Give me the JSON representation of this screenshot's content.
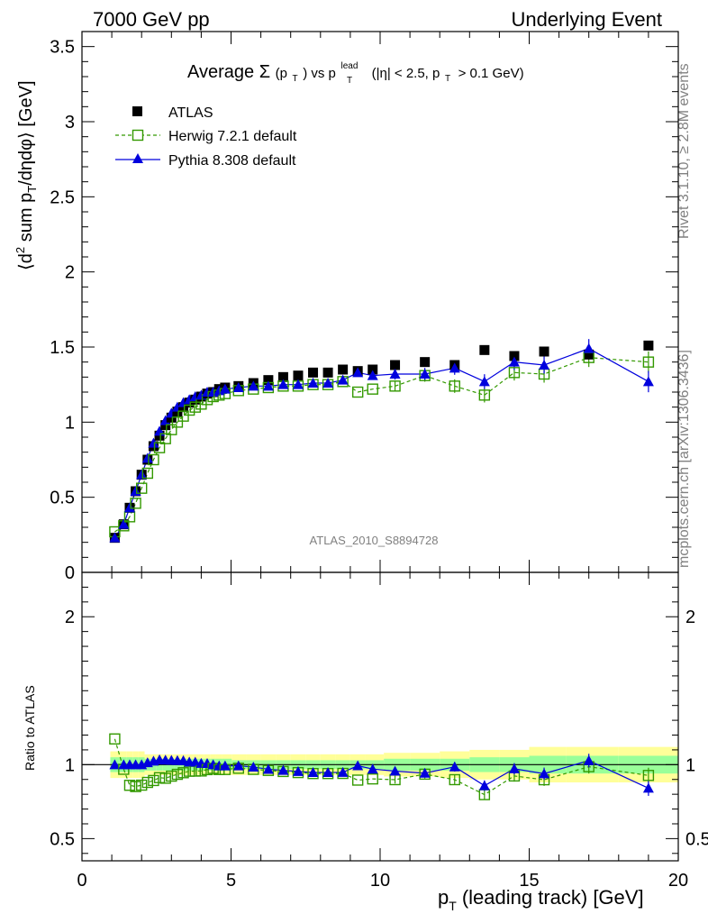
{
  "header": {
    "left": "7000 GeV pp",
    "right": "Underlying Event"
  },
  "side_notes": {
    "rivet": "Rivet 3.1.10, ≥ 2.8M events",
    "mcplots": "mcplots.cern.ch [arXiv:1306.3436]"
  },
  "title_parts": {
    "average": "Average",
    "sigma": "Σ",
    "p": "(p",
    "t1": "T",
    "close_vs": ") vs p",
    "lead": "lead",
    "t2": "T",
    "cuts_a": "(|η| < 2.5, p",
    "t3": "T",
    "cuts_b": "> 0.1 GeV)"
  },
  "analysis_label": "ATLAS_2010_S8894728",
  "ylabel_main": {
    "a": "⟨d",
    "sup2": "2",
    "b": " sum p",
    "subT": "T",
    "c": "/dηdφ⟩ [GeV]"
  },
  "ylabel_ratio": "Ratio to ATLAS",
  "xlabel": {
    "p": "p",
    "subT": "T",
    "rest": "(leading track) [GeV]"
  },
  "legend": [
    {
      "label": "ATLAS",
      "color": "#000000",
      "marker": "filled-square"
    },
    {
      "label": "Herwig 7.2.1 default",
      "color": "#339900",
      "marker": "open-square",
      "dash": true
    },
    {
      "label": "Pythia 8.308 default",
      "color": "#0000dd",
      "marker": "filled-triangle"
    }
  ],
  "chart_data": {
    "type": "scatter",
    "x_range": [
      0,
      20
    ],
    "main": {
      "ylim": [
        0,
        3.6
      ],
      "yticks": [
        {
          "v": 0,
          "label": "0"
        },
        {
          "v": 0.5,
          "label": "0.5"
        },
        {
          "v": 1,
          "label": "1"
        },
        {
          "v": 1.5,
          "label": "1.5"
        },
        {
          "v": 2,
          "label": "2"
        },
        {
          "v": 2.5,
          "label": "2.5"
        },
        {
          "v": 3,
          "label": "3"
        },
        {
          "v": 3.5,
          "label": "3.5"
        }
      ]
    },
    "ratio": {
      "ylim": [
        0.35,
        2.3
      ],
      "yticks": [
        {
          "v": 0.5,
          "label": "0.5"
        },
        {
          "v": 1,
          "label": "1"
        },
        {
          "v": 2,
          "label": "2"
        }
      ]
    },
    "xticks": [
      {
        "v": 0,
        "label": "0"
      },
      {
        "v": 5,
        "label": "5"
      },
      {
        "v": 10,
        "label": "10"
      },
      {
        "v": 15,
        "label": "15"
      },
      {
        "v": 20,
        "label": "20"
      }
    ],
    "x": [
      1.1,
      1.4,
      1.6,
      1.8,
      2.0,
      2.2,
      2.4,
      2.6,
      2.8,
      3.0,
      3.2,
      3.4,
      3.6,
      3.8,
      4.0,
      4.2,
      4.4,
      4.6,
      4.8,
      5.25,
      5.75,
      6.25,
      6.75,
      7.25,
      7.75,
      8.25,
      8.75,
      9.25,
      9.75,
      10.5,
      11.5,
      12.5,
      13.5,
      14.5,
      15.5,
      17.0,
      19.0
    ],
    "series": [
      {
        "name": "ATLAS",
        "values": [
          0.23,
          0.32,
          0.43,
          0.54,
          0.65,
          0.75,
          0.84,
          0.91,
          0.98,
          1.03,
          1.07,
          1.1,
          1.13,
          1.15,
          1.17,
          1.19,
          1.2,
          1.22,
          1.23,
          1.24,
          1.26,
          1.28,
          1.3,
          1.31,
          1.33,
          1.33,
          1.35,
          1.34,
          1.35,
          1.38,
          1.4,
          1.38,
          1.48,
          1.44,
          1.47,
          1.45,
          1.51
        ]
      },
      {
        "name": "Herwig 7.2.1 default",
        "values": [
          0.27,
          0.31,
          0.37,
          0.46,
          0.56,
          0.66,
          0.75,
          0.83,
          0.89,
          0.95,
          1.0,
          1.04,
          1.08,
          1.1,
          1.12,
          1.15,
          1.17,
          1.18,
          1.19,
          1.21,
          1.22,
          1.23,
          1.24,
          1.24,
          1.25,
          1.25,
          1.27,
          1.2,
          1.22,
          1.24,
          1.31,
          1.24,
          1.18,
          1.33,
          1.32,
          1.43,
          1.4
        ]
      },
      {
        "name": "Pythia 8.308 default",
        "values": [
          0.23,
          0.32,
          0.43,
          0.54,
          0.65,
          0.76,
          0.86,
          0.94,
          1.01,
          1.06,
          1.1,
          1.13,
          1.15,
          1.17,
          1.18,
          1.2,
          1.2,
          1.21,
          1.22,
          1.23,
          1.24,
          1.24,
          1.25,
          1.25,
          1.26,
          1.26,
          1.28,
          1.33,
          1.31,
          1.32,
          1.32,
          1.36,
          1.27,
          1.4,
          1.38,
          1.49,
          1.27
        ]
      }
    ],
    "ratio_band": {
      "stat": [
        0.05,
        0.05,
        0.05,
        0.05,
        0.05,
        0.04,
        0.04,
        0.04,
        0.04,
        0.04,
        0.04,
        0.04,
        0.04,
        0.04,
        0.04,
        0.04,
        0.04,
        0.04,
        0.04,
        0.03,
        0.03,
        0.03,
        0.03,
        0.03,
        0.03,
        0.03,
        0.03,
        0.03,
        0.03,
        0.04,
        0.04,
        0.04,
        0.05,
        0.05,
        0.06,
        0.06,
        0.06
      ],
      "total": [
        0.09,
        0.09,
        0.09,
        0.09,
        0.09,
        0.07,
        0.07,
        0.07,
        0.07,
        0.07,
        0.07,
        0.07,
        0.07,
        0.07,
        0.07,
        0.07,
        0.07,
        0.07,
        0.07,
        0.07,
        0.07,
        0.07,
        0.07,
        0.07,
        0.07,
        0.07,
        0.07,
        0.07,
        0.07,
        0.08,
        0.08,
        0.09,
        0.1,
        0.1,
        0.12,
        0.12,
        0.12
      ]
    }
  }
}
